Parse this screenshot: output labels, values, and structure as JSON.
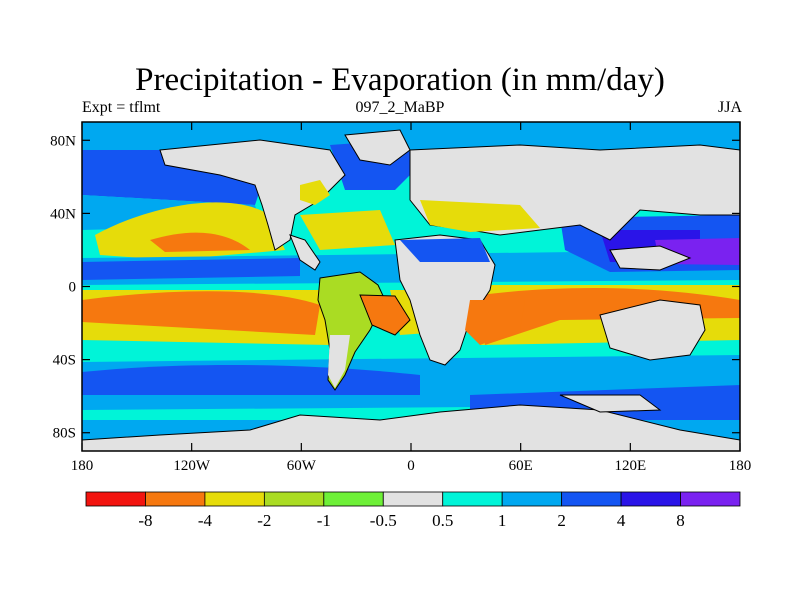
{
  "title": "Precipitation - Evaporation (in mm/day)",
  "left_subtitle": "Expt = tflmt",
  "center_subtitle": "097_2_MaBP",
  "right_subtitle": "JJA",
  "map": {
    "projection": "cylindrical-equidistant",
    "lon_range": [
      -180,
      180
    ],
    "lat_range": [
      -90,
      90
    ],
    "x_tick_labels": [
      {
        "lon": -180,
        "label": "180"
      },
      {
        "lon": -120,
        "label": "120W"
      },
      {
        "lon": -60,
        "label": "60W"
      },
      {
        "lon": 0,
        "label": "0"
      },
      {
        "lon": 60,
        "label": "60E"
      },
      {
        "lon": 120,
        "label": "120E"
      },
      {
        "lon": 180,
        "label": "180"
      }
    ],
    "y_tick_labels": [
      {
        "lat": 80,
        "label": "80N"
      },
      {
        "lat": 40,
        "label": "40N"
      },
      {
        "lat": 0,
        "label": "0"
      },
      {
        "lat": -40,
        "label": "40S"
      },
      {
        "lat": -80,
        "label": "80S"
      }
    ]
  },
  "colorbar": {
    "colors": [
      "#f2140f",
      "#f6780f",
      "#e6dc0a",
      "#aadc23",
      "#6ef038",
      "#e2e2e2",
      "#00f4d8",
      "#00a8f0",
      "#1455f2",
      "#2a14e8",
      "#7a22f0"
    ],
    "labels": [
      "-8",
      "-4",
      "-2",
      "-1",
      "-0.5",
      "0.5",
      "1",
      "2",
      "4",
      "8"
    ]
  }
}
